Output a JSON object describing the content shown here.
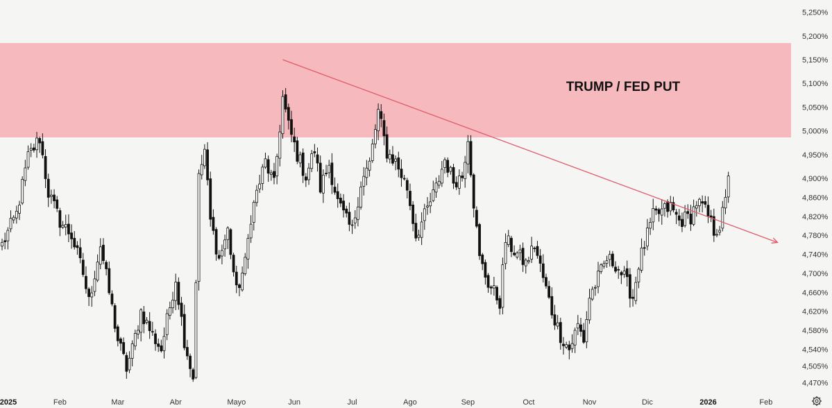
{
  "chart_data": {
    "type": "candlestick",
    "title": "",
    "ylim": [
      4450,
      5265
    ],
    "y_ticks": [
      "5,250%",
      "5,200%",
      "5,150%",
      "5,100%",
      "5,050%",
      "5,000%",
      "4,950%",
      "4,900%",
      "4,860%",
      "4,820%",
      "4,780%",
      "4,740%",
      "4,700%",
      "4,660%",
      "4,620%",
      "4,580%",
      "4,540%",
      "4,505%",
      "4,470%"
    ],
    "y_tick_values": [
      5250,
      5200,
      5150,
      5100,
      5050,
      5000,
      4950,
      4900,
      4860,
      4820,
      4780,
      4740,
      4700,
      4660,
      4620,
      4580,
      4540,
      4505,
      4470
    ],
    "x_ticks": [
      {
        "label": "2025",
        "index": 0,
        "bold": true
      },
      {
        "label": "Feb",
        "index": 20,
        "bold": false
      },
      {
        "label": "Mar",
        "index": 40,
        "bold": false
      },
      {
        "label": "Abr",
        "index": 60,
        "bold": false
      },
      {
        "label": "Mayo",
        "index": 81,
        "bold": false
      },
      {
        "label": "Jun",
        "index": 101,
        "bold": false
      },
      {
        "label": "Jul",
        "index": 121,
        "bold": false
      },
      {
        "label": "Ago",
        "index": 141,
        "bold": false
      },
      {
        "label": "Sep",
        "index": 161,
        "bold": false
      },
      {
        "label": "Oct",
        "index": 182,
        "bold": false
      },
      {
        "label": "Nov",
        "index": 203,
        "bold": false
      },
      {
        "label": "Dic",
        "index": 223,
        "bold": false
      },
      {
        "label": "2026",
        "index": 244,
        "bold": true
      },
      {
        "label": "Feb",
        "index": 264,
        "bold": false
      }
    ],
    "total_slots": 272,
    "zone": {
      "label": "TRUMP / FED PUT",
      "y_from": 4985,
      "y_to": 5185,
      "color": "#f5b3b8"
    },
    "trendline": {
      "from_index": 97,
      "from_value": 5150,
      "to_index": 268,
      "to_value": 4765,
      "color": "#e05a6a"
    },
    "path_anchors": [
      [
        0,
        4760
      ],
      [
        5,
        4825
      ],
      [
        9,
        4945
      ],
      [
        13,
        4985
      ],
      [
        16,
        4870
      ],
      [
        20,
        4810
      ],
      [
        24,
        4780
      ],
      [
        28,
        4700
      ],
      [
        30,
        4640
      ],
      [
        34,
        4760
      ],
      [
        37,
        4660
      ],
      [
        40,
        4560
      ],
      [
        43,
        4500
      ],
      [
        45,
        4540
      ],
      [
        48,
        4620
      ],
      [
        52,
        4570
      ],
      [
        55,
        4540
      ],
      [
        60,
        4690
      ],
      [
        63,
        4560
      ],
      [
        66,
        4480
      ],
      [
        68,
        4900
      ],
      [
        70,
        4960
      ],
      [
        72,
        4810
      ],
      [
        75,
        4730
      ],
      [
        78,
        4790
      ],
      [
        81,
        4660
      ],
      [
        84,
        4720
      ],
      [
        86,
        4820
      ],
      [
        88,
        4870
      ],
      [
        91,
        4935
      ],
      [
        94,
        4885
      ],
      [
        97,
        5070
      ],
      [
        99,
        5010
      ],
      [
        102,
        4950
      ],
      [
        105,
        4905
      ],
      [
        108,
        4960
      ],
      [
        110,
        4880
      ],
      [
        113,
        4930
      ],
      [
        116,
        4850
      ],
      [
        119,
        4810
      ],
      [
        121,
        4790
      ],
      [
        124,
        4890
      ],
      [
        127,
        4930
      ],
      [
        130,
        5040
      ],
      [
        133,
        4955
      ],
      [
        136,
        4935
      ],
      [
        140,
        4880
      ],
      [
        143,
        4780
      ],
      [
        146,
        4820
      ],
      [
        150,
        4880
      ],
      [
        153,
        4940
      ],
      [
        156,
        4895
      ],
      [
        159,
        4905
      ],
      [
        161,
        4990
      ],
      [
        163,
        4850
      ],
      [
        165,
        4730
      ],
      [
        168,
        4680
      ],
      [
        172,
        4640
      ],
      [
        174,
        4770
      ],
      [
        178,
        4740
      ],
      [
        181,
        4720
      ],
      [
        184,
        4760
      ],
      [
        187,
        4690
      ],
      [
        190,
        4620
      ],
      [
        193,
        4570
      ],
      [
        196,
        4540
      ],
      [
        199,
        4590
      ],
      [
        201,
        4560
      ],
      [
        203,
        4650
      ],
      [
        206,
        4690
      ],
      [
        209,
        4730
      ],
      [
        212,
        4720
      ],
      [
        215,
        4690
      ],
      [
        218,
        4650
      ],
      [
        220,
        4720
      ],
      [
        222,
        4760
      ],
      [
        225,
        4820
      ],
      [
        228,
        4830
      ],
      [
        231,
        4840
      ],
      [
        234,
        4810
      ],
      [
        238,
        4820
      ],
      [
        240,
        4850
      ],
      [
        242,
        4840
      ],
      [
        244,
        4820
      ],
      [
        246,
        4790
      ],
      [
        248,
        4800
      ],
      [
        250,
        4850
      ],
      [
        251,
        4905
      ]
    ]
  }
}
